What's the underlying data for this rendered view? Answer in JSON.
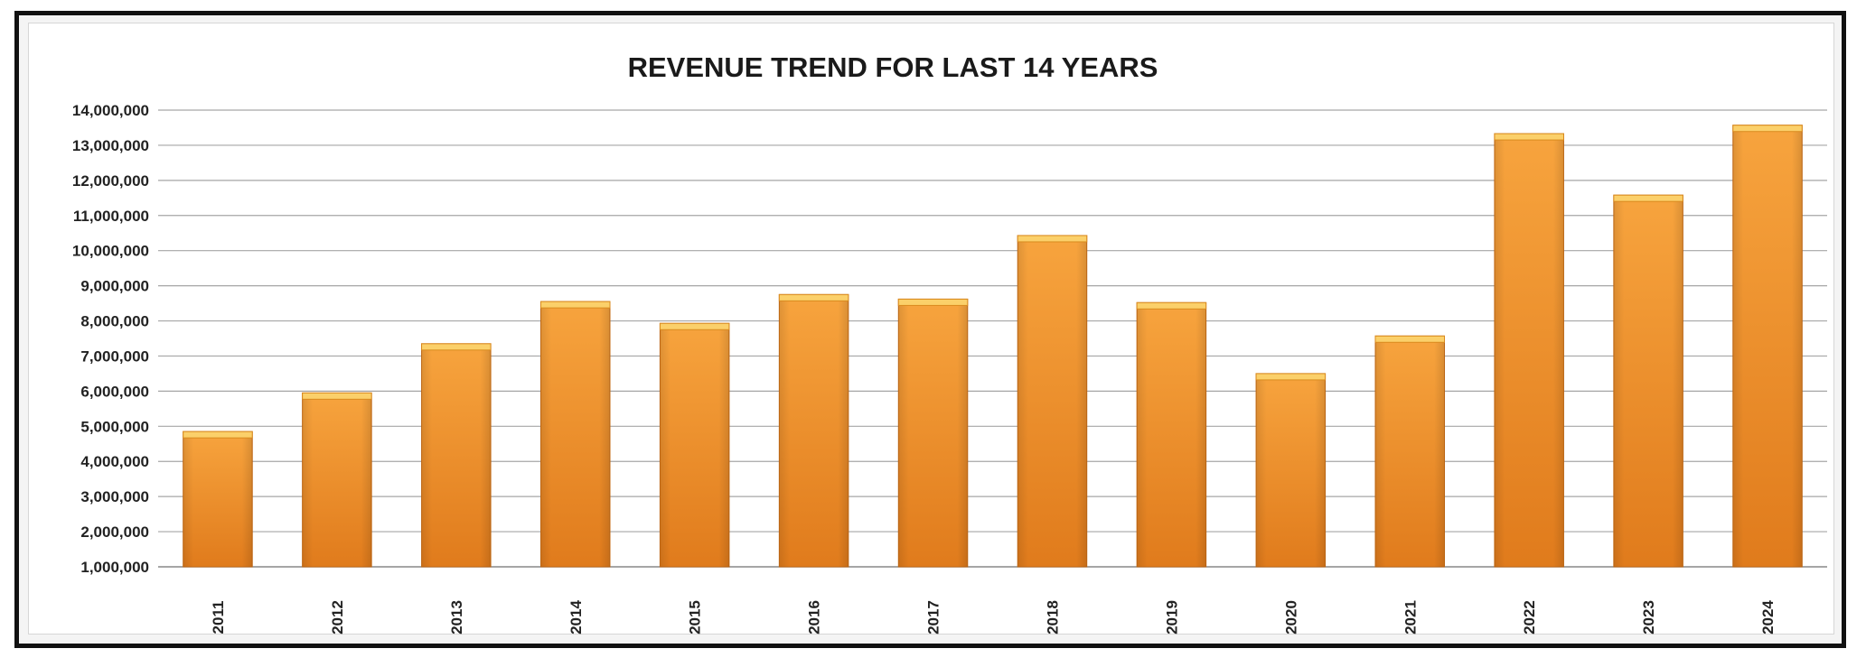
{
  "chart_data": {
    "type": "bar",
    "title": "REVENUE TREND FOR LAST 14 YEARS",
    "xlabel": "",
    "ylabel": "",
    "categories": [
      "2011",
      "2012",
      "2013",
      "2014",
      "2015",
      "2016",
      "2017",
      "2018",
      "2019",
      "2020",
      "2021",
      "2022",
      "2023",
      "2024"
    ],
    "values": [
      4850000,
      5950000,
      7350000,
      8550000,
      7930000,
      8750000,
      8620000,
      10430000,
      8520000,
      6500000,
      7570000,
      13330000,
      11580000,
      13570000
    ],
    "ylim": [
      1000000,
      14000000
    ],
    "yticks": [
      "1,000,000",
      "2,000,000",
      "3,000,000",
      "4,000,000",
      "5,000,000",
      "6,000,000",
      "7,000,000",
      "8,000,000",
      "9,000,000",
      "10,000,000",
      "11,000,000",
      "12,000,000",
      "13,000,000",
      "14,000,000"
    ],
    "grid": true,
    "legend": "none",
    "bar_color": "#f0922a"
  }
}
